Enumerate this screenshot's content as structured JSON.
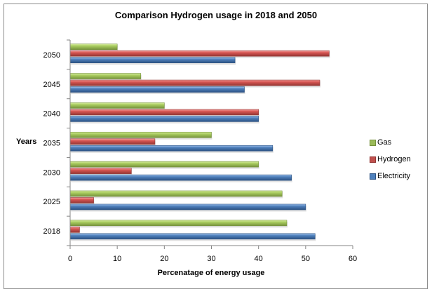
{
  "chart_data": {
    "type": "bar",
    "orientation": "horizontal",
    "title": "Comparison Hydrogen usage in 2018  and 2050",
    "xlabel": "Percenatage of energy usage",
    "ylabel": "Years",
    "categories": [
      "2018",
      "2025",
      "2030",
      "2035",
      "2040",
      "2045",
      "2050"
    ],
    "xlim": [
      0,
      60
    ],
    "xticks": [
      0,
      10,
      20,
      30,
      40,
      50,
      60
    ],
    "grid": false,
    "legend_position": "right",
    "series": [
      {
        "name": "Gas",
        "color": "#9bbb59",
        "values": [
          46,
          45,
          40,
          30,
          20,
          15,
          10
        ]
      },
      {
        "name": "Hydrogen",
        "color": "#c0504d",
        "values": [
          2,
          5,
          13,
          18,
          40,
          53,
          55
        ]
      },
      {
        "name": "Electricity",
        "color": "#4f81bd",
        "values": [
          52,
          50,
          47,
          43,
          40,
          37,
          35
        ]
      }
    ]
  }
}
